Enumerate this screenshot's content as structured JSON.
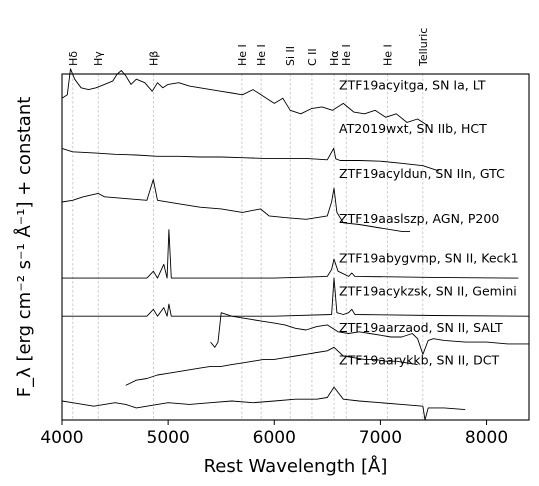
{
  "chart_data": {
    "type": "line",
    "xlabel": "Rest Wavelength [Å]",
    "ylabel": "F_λ [erg cm⁻² s⁻¹ Å⁻¹] + constant",
    "xlim": [
      4000,
      8400
    ],
    "ylim": [
      0,
      10
    ],
    "x_ticks": [
      {
        "value": 4000,
        "label": "4000"
      },
      {
        "value": 5000,
        "label": "5000"
      },
      {
        "value": 6000,
        "label": "6000"
      },
      {
        "value": 7000,
        "label": "7000"
      },
      {
        "value": 8000,
        "label": "8000"
      }
    ],
    "grid": false,
    "legend": "none",
    "line_markers": [
      {
        "label": "Hδ",
        "wavelength": 4102
      },
      {
        "label": "Hγ",
        "wavelength": 4341
      },
      {
        "label": "Hβ",
        "wavelength": 4861
      },
      {
        "label": "He I",
        "wavelength": 5695
      },
      {
        "label": "He I",
        "wavelength": 5876
      },
      {
        "label": "Si II",
        "wavelength": 6150
      },
      {
        "label": "C II",
        "wavelength": 6355
      },
      {
        "label": "Hα",
        "wavelength": 6563
      },
      {
        "label": "He I",
        "wavelength": 6678
      },
      {
        "label": "He I",
        "wavelength": 7065
      },
      {
        "label": "Telluric",
        "wavelength": 7400
      }
    ],
    "series": [
      {
        "name": "ZTF19acyitga, SN Ia, LT",
        "offset": 9.55,
        "x": [
          4000,
          4050,
          4080,
          4120,
          4180,
          4250,
          4320,
          4400,
          4480,
          4520,
          4560,
          4600,
          4650,
          4700,
          4780,
          4850,
          4900,
          4950,
          5000,
          5100,
          5200,
          5300,
          5400,
          5500,
          5600,
          5700,
          5800,
          5900,
          6000,
          6080,
          6150,
          6250,
          6350,
          6450,
          6550,
          6650,
          6750,
          6850,
          6950,
          7050,
          7150,
          7250,
          7350,
          7450
        ],
        "y": [
          9.3,
          9.4,
          10.15,
          9.85,
          9.6,
          9.55,
          9.6,
          9.7,
          9.8,
          10.0,
          10.1,
          9.95,
          9.7,
          9.85,
          9.75,
          9.5,
          9.75,
          9.6,
          9.7,
          9.75,
          9.65,
          9.6,
          9.55,
          9.5,
          9.45,
          9.4,
          9.55,
          9.35,
          9.15,
          9.3,
          8.95,
          8.85,
          9.0,
          9.05,
          8.95,
          9.15,
          8.9,
          8.85,
          8.95,
          8.75,
          8.85,
          8.6,
          8.7,
          8.5
        ]
      },
      {
        "name": "AT2019wxt, SN IIb, HCT",
        "offset": 8.3,
        "x": [
          4000,
          4100,
          4300,
          4500,
          4700,
          4900,
          5100,
          5300,
          5500,
          5700,
          5900,
          6100,
          6300,
          6500,
          6560,
          6580,
          6620,
          6800,
          7000,
          7200,
          7400,
          7550
        ],
        "y": [
          7.85,
          7.75,
          7.72,
          7.68,
          7.66,
          7.62,
          7.62,
          7.6,
          7.6,
          7.58,
          7.56,
          7.56,
          7.56,
          7.52,
          7.85,
          7.55,
          7.5,
          7.5,
          7.48,
          7.42,
          7.35,
          7.2
        ]
      },
      {
        "name": "ZTF19acyldun, SN IIn, GTC",
        "offset": 7.0,
        "x": [
          4000,
          4100,
          4200,
          4340,
          4400,
          4600,
          4800,
          4860,
          4900,
          5100,
          5300,
          5500,
          5700,
          5870,
          5950,
          6100,
          6300,
          6500,
          6540,
          6563,
          6590,
          6650,
          6800,
          7000,
          7200,
          7280
        ],
        "y": [
          6.3,
          6.35,
          6.45,
          6.55,
          6.45,
          6.4,
          6.35,
          6.95,
          6.35,
          6.25,
          6.15,
          6.1,
          6.0,
          6.1,
          5.9,
          5.85,
          5.8,
          5.9,
          6.3,
          6.7,
          6.0,
          5.7,
          5.65,
          5.55,
          5.45,
          5.45
        ]
      },
      {
        "name": "ZTF19aaslszp, AGN, P200",
        "offset": 5.7,
        "x": [
          4000,
          4800,
          4861,
          4900,
          4959,
          4990,
          5007,
          5030,
          5100,
          6000,
          6500,
          6540,
          6563,
          6600,
          6700,
          6730,
          6760,
          7500,
          8300
        ],
        "y": [
          4.1,
          4.1,
          4.3,
          4.1,
          4.5,
          4.1,
          5.5,
          4.1,
          4.1,
          4.1,
          4.15,
          4.35,
          4.65,
          4.3,
          4.15,
          4.25,
          4.15,
          4.12,
          4.1
        ]
      },
      {
        "name": "ZTF19abygvmp, SN II, Keck1",
        "offset": 4.55,
        "x": [
          4000,
          4800,
          4861,
          4900,
          4959,
          4990,
          5007,
          5030,
          5100,
          6000,
          6540,
          6563,
          6590,
          6650,
          6700,
          6730,
          6760,
          7500,
          8400
        ],
        "y": [
          3.0,
          3.0,
          3.2,
          3.0,
          3.25,
          3.0,
          3.35,
          3.0,
          3.0,
          3.0,
          3.05,
          4.1,
          3.1,
          3.05,
          3.1,
          3.2,
          3.05,
          3.02,
          3.0
        ]
      },
      {
        "name": "ZTF19acykzsk, SN II, Gemini",
        "offset": 3.6,
        "x": [
          5400,
          5440,
          5470,
          5500,
          5600,
          5700,
          5800,
          5900,
          6000,
          6100,
          6200,
          6300,
          6400,
          6500,
          6600,
          6700,
          6800,
          6900,
          7000,
          7100,
          7200,
          7300,
          7350,
          7400,
          7450,
          7500,
          7600,
          7800,
          8000,
          8200,
          8400
        ],
        "y": [
          2.25,
          2.1,
          2.25,
          3.1,
          3.0,
          2.95,
          2.9,
          2.85,
          2.8,
          2.75,
          2.65,
          2.6,
          2.7,
          2.75,
          2.55,
          2.5,
          2.55,
          2.5,
          2.45,
          2.4,
          2.4,
          2.5,
          2.35,
          1.9,
          2.3,
          2.35,
          2.3,
          2.25,
          2.25,
          2.2,
          2.2
        ]
      },
      {
        "name": "ZTF19aarzaod, SN II, SALT",
        "offset": 2.55,
        "x": [
          4600,
          4700,
          4800,
          4900,
          5000,
          5100,
          5200,
          5300,
          5400,
          5500,
          5600,
          5700,
          5800,
          5900,
          6000,
          6100,
          6200,
          6300,
          6400,
          6500,
          6563,
          6650,
          6750,
          6850,
          6950,
          7050,
          7150,
          7250,
          7350
        ],
        "y": [
          1.0,
          1.15,
          1.2,
          1.3,
          1.35,
          1.4,
          1.45,
          1.5,
          1.55,
          1.55,
          1.6,
          1.65,
          1.7,
          1.75,
          1.75,
          1.8,
          1.85,
          1.9,
          1.95,
          2.0,
          2.1,
          1.85,
          1.8,
          1.75,
          1.75,
          1.7,
          1.7,
          1.65,
          1.6
        ]
      },
      {
        "name": "ZTF19aarykkb, SN II, DCT",
        "offset": 1.6,
        "x": [
          4000,
          4100,
          4200,
          4300,
          4400,
          4500,
          4600,
          4700,
          4800,
          4900,
          5000,
          5200,
          5400,
          5600,
          5800,
          6000,
          6200,
          6400,
          6500,
          6563,
          6650,
          6800,
          7000,
          7200,
          7400,
          7420,
          7450,
          7600,
          7800
        ],
        "y": [
          0.55,
          0.5,
          0.45,
          0.4,
          0.45,
          0.5,
          0.45,
          0.35,
          0.4,
          0.45,
          0.5,
          0.45,
          0.5,
          0.55,
          0.5,
          0.55,
          0.6,
          0.6,
          0.65,
          0.95,
          0.6,
          0.55,
          0.5,
          0.45,
          0.4,
          0.0,
          0.35,
          0.35,
          0.3
        ]
      }
    ]
  }
}
